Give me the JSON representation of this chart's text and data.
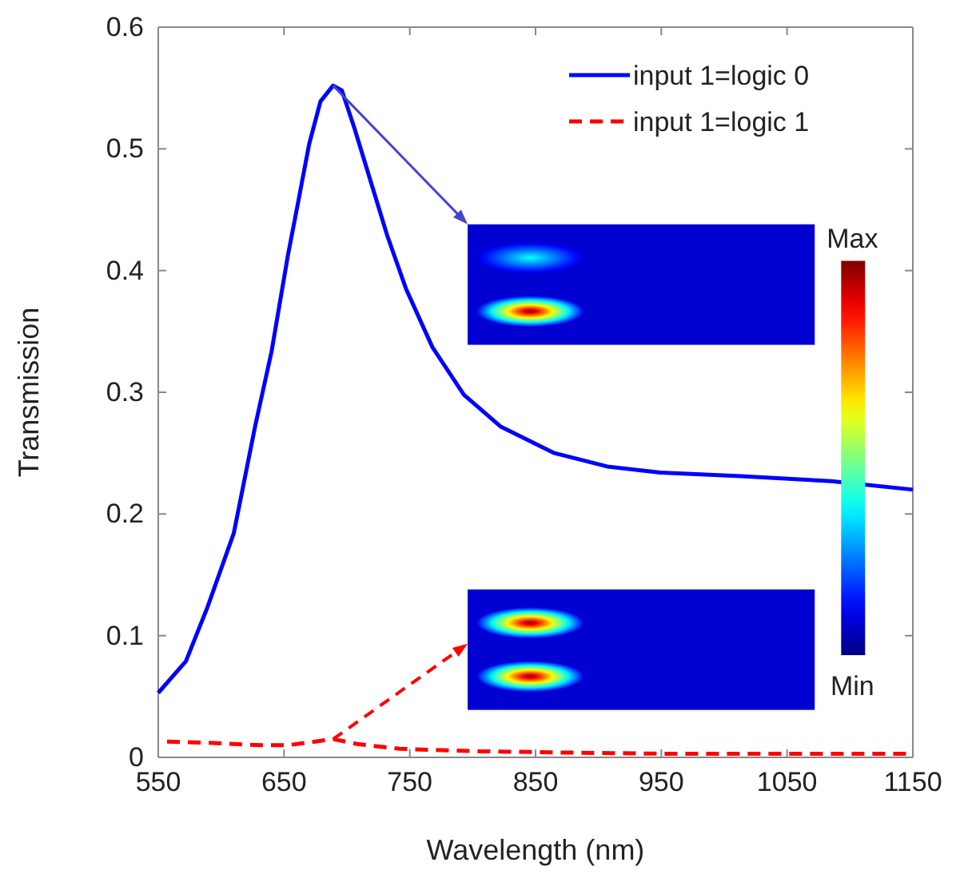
{
  "chart_data": {
    "type": "line",
    "xlabel": "Wavelength (nm)",
    "ylabel": "Transmission",
    "xlim": [
      550,
      1150
    ],
    "ylim": [
      0,
      0.6
    ],
    "xticks": [
      550,
      650,
      750,
      850,
      950,
      1050,
      1150
    ],
    "yticks": [
      0,
      0.1,
      0.2,
      0.3,
      0.4,
      0.5,
      0.6
    ],
    "grid": false,
    "legend": "top right",
    "series": [
      {
        "name": "input 1=logic 0",
        "color": "#0000ff",
        "line_style": "solid",
        "x": [
          550,
          572,
          589,
          610,
          627,
          640,
          653,
          661,
          670,
          679,
          689,
          696,
          706,
          719,
          732,
          747,
          768,
          793,
          822,
          865,
          907,
          949,
          1013,
          1085,
          1150
        ],
        "values": [
          0.053,
          0.079,
          0.123,
          0.184,
          0.272,
          0.333,
          0.412,
          0.455,
          0.504,
          0.539,
          0.552,
          0.548,
          0.517,
          0.473,
          0.429,
          0.385,
          0.337,
          0.298,
          0.272,
          0.25,
          0.239,
          0.234,
          0.231,
          0.227,
          0.22
        ]
      },
      {
        "name": "input 1=logic 1",
        "color": "#ff0000",
        "line_style": "dashed",
        "x": [
          557,
          589,
          632,
          653,
          689,
          708,
          742,
          806,
          870,
          950,
          1050,
          1150
        ],
        "values": [
          0.013,
          0.012,
          0.01,
          0.01,
          0.015,
          0.011,
          0.007,
          0.005,
          0.004,
          0.003,
          0.003,
          0.003
        ]
      }
    ],
    "annotations": [
      "Max",
      "Min"
    ]
  }
}
